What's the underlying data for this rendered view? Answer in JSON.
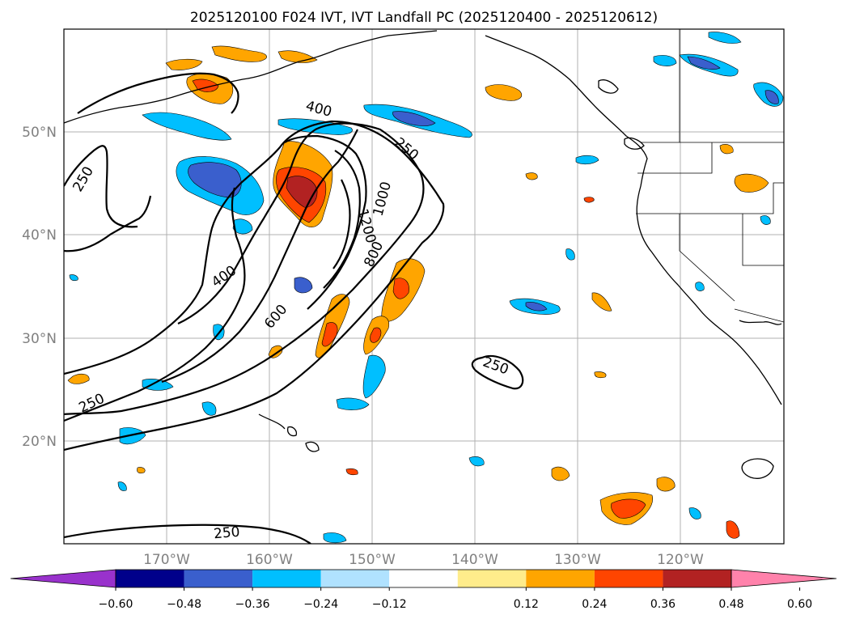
{
  "title": "2025120100 F024 IVT, IVT Landfall PC (2025120400 - 2025120612)",
  "map": {
    "lat_labels": [
      "50°N",
      "40°N",
      "30°N",
      "20°N"
    ],
    "lon_labels": [
      "170°W",
      "160°W",
      "150°W",
      "140°W",
      "130°W",
      "120°W"
    ],
    "ivt_contour_labels": [
      "400",
      "250",
      "250",
      "1000",
      "1200",
      "800",
      "400",
      "600",
      "250",
      "250",
      "250"
    ]
  },
  "colorbar": {
    "ticks": [
      "−0.60",
      "−0.48",
      "−0.36",
      "−0.24",
      "−0.12",
      "0.12",
      "0.24",
      "0.36",
      "0.48",
      "0.60"
    ],
    "colors": [
      "#9932cc",
      "#00008b",
      "#3a5fcd",
      "#00bfff",
      "#b0e2ff",
      "#ffffff",
      "#ffec8b",
      "#ffa500",
      "#ff4500",
      "#b22222",
      "#ff82ab"
    ]
  }
}
